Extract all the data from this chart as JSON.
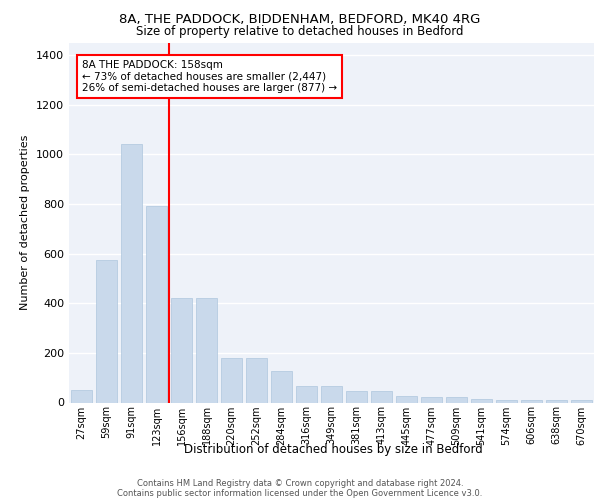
{
  "title_line1": "8A, THE PADDOCK, BIDDENHAM, BEDFORD, MK40 4RG",
  "title_line2": "Size of property relative to detached houses in Bedford",
  "xlabel": "Distribution of detached houses by size in Bedford",
  "ylabel": "Number of detached properties",
  "categories": [
    "27sqm",
    "59sqm",
    "91sqm",
    "123sqm",
    "156sqm",
    "188sqm",
    "220sqm",
    "252sqm",
    "284sqm",
    "316sqm",
    "349sqm",
    "381sqm",
    "413sqm",
    "445sqm",
    "477sqm",
    "509sqm",
    "541sqm",
    "574sqm",
    "606sqm",
    "638sqm",
    "670sqm"
  ],
  "values": [
    50,
    575,
    1040,
    790,
    420,
    420,
    180,
    180,
    125,
    65,
    65,
    48,
    48,
    27,
    22,
    22,
    15,
    11,
    11,
    11,
    11
  ],
  "bar_color": "#c9d9eb",
  "bar_edge_color": "#aec6dd",
  "vline_color": "red",
  "vline_pos": 3.5,
  "annotation_text": "8A THE PADDOCK: 158sqm\n← 73% of detached houses are smaller (2,447)\n26% of semi-detached houses are larger (877) →",
  "annotation_box_color": "white",
  "annotation_box_edge": "red",
  "ylim": [
    0,
    1450
  ],
  "yticks": [
    0,
    200,
    400,
    600,
    800,
    1000,
    1200,
    1400
  ],
  "bg_color": "#eef2f9",
  "grid_color": "white",
  "footer_line1": "Contains HM Land Registry data © Crown copyright and database right 2024.",
  "footer_line2": "Contains public sector information licensed under the Open Government Licence v3.0."
}
